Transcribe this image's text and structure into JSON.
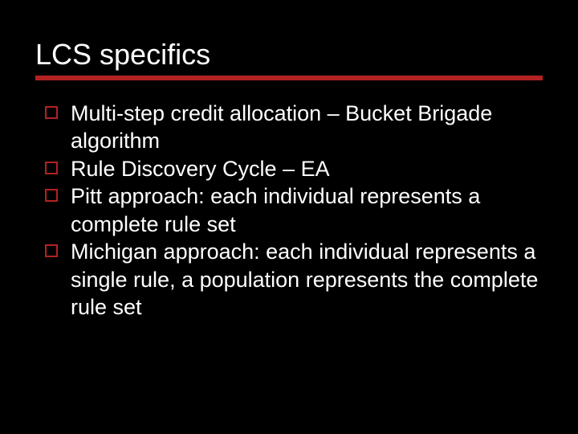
{
  "title": "LCS specifics",
  "accent_color": "#b22222",
  "background_color": "#000000",
  "text_color": "#ffffff",
  "title_fontsize": 36,
  "body_fontsize": 27,
  "bullets": [
    "Multi-step credit allocation – Bucket Brigade algorithm",
    "Rule Discovery Cycle – EA",
    "Pitt approach: each individual represents a complete rule set",
    "Michigan approach: each individual represents a single rule, a population represents the complete rule set"
  ]
}
